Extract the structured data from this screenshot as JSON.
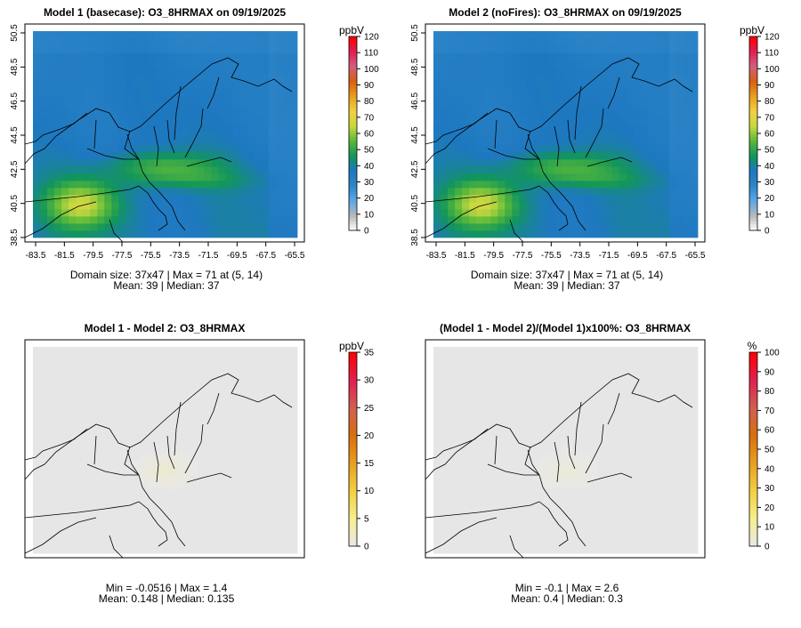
{
  "panels": [
    {
      "id": "model1",
      "title": "Model 1 (basecase): O3_8HRMAX on 09/19/2025",
      "field": "base",
      "x_ticks": [
        "-83.5",
        "-81.5",
        "-79.5",
        "-77.5",
        "-75.5",
        "-73.5",
        "-71.5",
        "-69.5",
        "-67.5",
        "-65.5"
      ],
      "y_ticks": [
        "38.5",
        "40.5",
        "42.5",
        "44.5",
        "46.5",
        "48.5",
        "50.5"
      ],
      "stats_line1": "Domain size: 37x47 | Max = 71 at (5, 14)",
      "stats_line2": "Mean: 39 |  Median: 37",
      "legend": {
        "unit": "ppbV",
        "min": 0,
        "max": 120,
        "ticks": [
          "0",
          "10",
          "20",
          "30",
          "40",
          "50",
          "60",
          "70",
          "80",
          "90",
          "100",
          "110",
          "120"
        ]
      }
    },
    {
      "id": "model2",
      "title": "Model 2 (noFires): O3_8HRMAX on 09/19/2025",
      "field": "base",
      "x_ticks": [
        "-83.5",
        "-81.5",
        "-79.5",
        "-77.5",
        "-75.5",
        "-73.5",
        "-71.5",
        "-69.5",
        "-67.5",
        "-65.5"
      ],
      "y_ticks": [
        "38.5",
        "40.5",
        "42.5",
        "44.5",
        "46.5",
        "48.5",
        "50.5"
      ],
      "stats_line1": "Domain size: 37x47 | Max = 71 at (5, 14)",
      "stats_line2": "Mean: 39 |  Median: 37",
      "legend": {
        "unit": "ppbV",
        "min": 0,
        "max": 120,
        "ticks": [
          "0",
          "10",
          "20",
          "30",
          "40",
          "50",
          "60",
          "70",
          "80",
          "90",
          "100",
          "110",
          "120"
        ]
      }
    },
    {
      "id": "diff",
      "title": "Model 1 - Model 2: O3_8HRMAX",
      "field": "diff",
      "x_ticks": [],
      "y_ticks": [],
      "stats_line1": "Min = -0.0516 | Max = 1.4",
      "stats_line2": "Mean: 0.148 |  Median: 0.135",
      "legend": {
        "unit": "ppbV",
        "min": 0,
        "max": 35,
        "ticks": [
          "0",
          "5",
          "10",
          "15",
          "20",
          "25",
          "30",
          "35"
        ]
      }
    },
    {
      "id": "pctdiff",
      "title": "(Model 1 - Model 2)/(Model 1)x100%: O3_8HRMAX",
      "field": "pct",
      "x_ticks": [],
      "y_ticks": [],
      "stats_line1": "Min = -0.1 | Max = 2.6",
      "stats_line2": "Mean: 0.4 |  Median: 0.3",
      "legend": {
        "unit": "%",
        "min": 0,
        "max": 100,
        "ticks": [
          "0",
          "10",
          "20",
          "30",
          "40",
          "50",
          "60",
          "70",
          "80",
          "90",
          "100"
        ]
      }
    }
  ],
  "colors": {
    "scale_ozone": [
      "#ffffff",
      "#b8b8b8",
      "#5aa8e8",
      "#2e86c8",
      "#1e78c0",
      "#12965a",
      "#58b83a",
      "#c8d840",
      "#f2d040",
      "#e8a020",
      "#d86010",
      "#d06080",
      "#e02050",
      "#ff0000"
    ],
    "scale_diff": [
      "#e8e8e8",
      "#f6ee90",
      "#f2d040",
      "#e8a020",
      "#d87010",
      "#d06050",
      "#e02050",
      "#ff0000"
    ],
    "map_lines": "#000000",
    "frame": "#000000"
  }
}
